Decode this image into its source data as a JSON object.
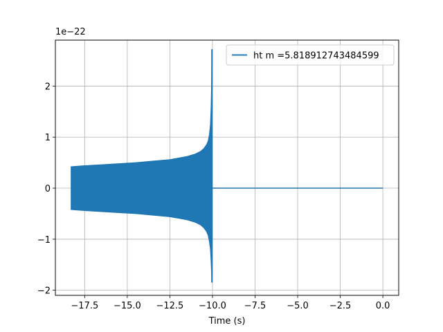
{
  "chart_data": {
    "type": "line",
    "title": "",
    "xlabel": "Time (s)",
    "ylabel": "",
    "y_offset_label": "1e−22",
    "xlim": [
      -19.22,
      0.93
    ],
    "ylim": [
      -2.1,
      2.9
    ],
    "grid": true,
    "legend_position": "upper-right",
    "x_ticks": [
      -17.5,
      -15.0,
      -12.5,
      -10.0,
      -7.5,
      -5.0,
      -2.5,
      0.0
    ],
    "x_tick_labels": [
      "−17.5",
      "−15.0",
      "−12.5",
      "−10.0",
      "−7.5",
      "−5.0",
      "−2.5",
      "0.0"
    ],
    "y_ticks": [
      -2,
      -1,
      0,
      1,
      2
    ],
    "y_tick_labels": [
      "−2",
      "−1",
      "0",
      "1",
      "2"
    ],
    "series": [
      {
        "name": "ht m =5.818912743484599",
        "color": "#1f77b4",
        "style": "chirp-envelope",
        "envelope_upper": [
          [
            -18.3,
            0.42
          ],
          [
            -17.5,
            0.44
          ],
          [
            -16.5,
            0.46
          ],
          [
            -15.5,
            0.48
          ],
          [
            -14.5,
            0.5
          ],
          [
            -13.5,
            0.53
          ],
          [
            -12.5,
            0.56
          ],
          [
            -12.0,
            0.59
          ],
          [
            -11.5,
            0.62
          ],
          [
            -11.0,
            0.67
          ],
          [
            -10.7,
            0.72
          ],
          [
            -10.5,
            0.78
          ],
          [
            -10.35,
            0.85
          ],
          [
            -10.25,
            0.93
          ],
          [
            -10.18,
            1.05
          ],
          [
            -10.12,
            1.25
          ],
          [
            -10.08,
            1.6
          ],
          [
            -10.05,
            2.1
          ],
          [
            -10.03,
            2.72
          ]
        ],
        "envelope_lower": [
          [
            -18.3,
            -0.42
          ],
          [
            -17.5,
            -0.44
          ],
          [
            -16.5,
            -0.46
          ],
          [
            -15.5,
            -0.48
          ],
          [
            -14.5,
            -0.5
          ],
          [
            -13.5,
            -0.53
          ],
          [
            -12.5,
            -0.56
          ],
          [
            -12.0,
            -0.59
          ],
          [
            -11.5,
            -0.62
          ],
          [
            -11.0,
            -0.67
          ],
          [
            -10.7,
            -0.72
          ],
          [
            -10.5,
            -0.78
          ],
          [
            -10.35,
            -0.85
          ],
          [
            -10.25,
            -0.93
          ],
          [
            -10.18,
            -1.05
          ],
          [
            -10.12,
            -1.2
          ],
          [
            -10.08,
            -1.45
          ],
          [
            -10.05,
            -1.7
          ],
          [
            -10.03,
            -1.85
          ]
        ],
        "tail": [
          [
            -10.0,
            0.0
          ],
          [
            0.0,
            0.0
          ]
        ]
      }
    ]
  }
}
